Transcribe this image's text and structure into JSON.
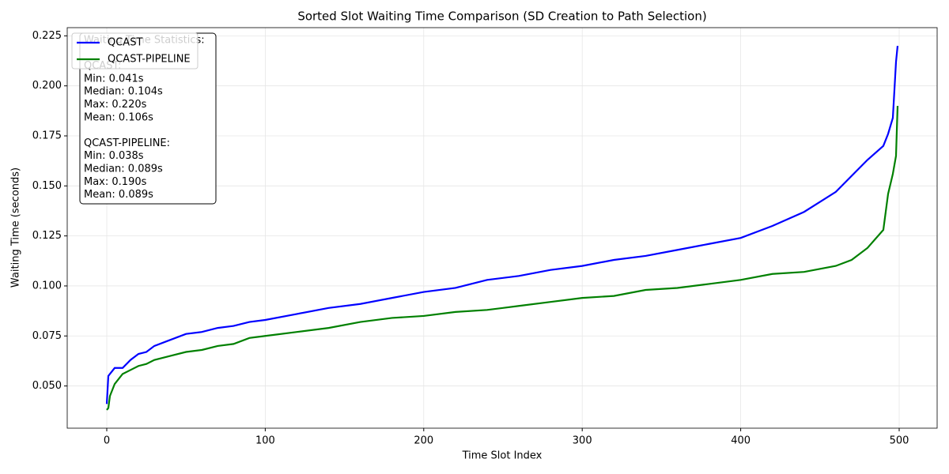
{
  "chart_data": {
    "type": "line",
    "title": "Sorted Slot Waiting Time Comparison (SD Creation to Path Selection)",
    "xlabel": "Time Slot Index",
    "ylabel": "Waiting Time (seconds)",
    "x": [
      0,
      1,
      2,
      5,
      10,
      15,
      20,
      25,
      30,
      40,
      50,
      60,
      70,
      80,
      90,
      100,
      120,
      140,
      160,
      180,
      200,
      220,
      240,
      260,
      280,
      300,
      320,
      340,
      360,
      380,
      400,
      420,
      440,
      460,
      470,
      480,
      490,
      493,
      496,
      498,
      499
    ],
    "series": [
      {
        "name": "QCAST",
        "color": "#0000ff",
        "values": [
          0.041,
          0.055,
          0.056,
          0.059,
          0.059,
          0.063,
          0.066,
          0.067,
          0.07,
          0.073,
          0.076,
          0.077,
          0.079,
          0.08,
          0.082,
          0.083,
          0.086,
          0.089,
          0.091,
          0.094,
          0.097,
          0.099,
          0.103,
          0.105,
          0.108,
          0.11,
          0.113,
          0.115,
          0.118,
          0.121,
          0.124,
          0.13,
          0.137,
          0.147,
          0.155,
          0.163,
          0.17,
          0.176,
          0.184,
          0.212,
          0.22
        ]
      },
      {
        "name": "QCAST-PIPELINE",
        "color": "#008000",
        "values": [
          0.038,
          0.039,
          0.045,
          0.051,
          0.056,
          0.058,
          0.06,
          0.061,
          0.063,
          0.065,
          0.067,
          0.068,
          0.07,
          0.071,
          0.074,
          0.075,
          0.077,
          0.079,
          0.082,
          0.084,
          0.085,
          0.087,
          0.088,
          0.09,
          0.092,
          0.094,
          0.095,
          0.098,
          0.099,
          0.101,
          0.103,
          0.106,
          0.107,
          0.11,
          0.113,
          0.119,
          0.128,
          0.146,
          0.156,
          0.165,
          0.19
        ]
      }
    ],
    "xlim": [
      -24.95,
      523.95
    ],
    "ylim": [
      0.0289,
      0.2291
    ],
    "xticks": [
      0,
      100,
      200,
      300,
      400,
      500
    ],
    "yticks": [
      {
        "value": 0.05,
        "label": "0.050"
      },
      {
        "value": 0.075,
        "label": "0.075"
      },
      {
        "value": 0.1,
        "label": "0.100"
      },
      {
        "value": 0.125,
        "label": "0.125"
      },
      {
        "value": 0.15,
        "label": "0.150"
      },
      {
        "value": 0.175,
        "label": "0.175"
      },
      {
        "value": 0.2,
        "label": "0.200"
      },
      {
        "value": 0.225,
        "label": "0.225"
      }
    ],
    "grid": true,
    "legend": "upper left",
    "annotation": [
      [
        "Waiting Time Statistics:"
      ],
      [
        "QCAST:",
        "Min: 0.041s",
        "Median: 0.104s",
        "Max: 0.220s",
        "Mean: 0.106s"
      ],
      [
        "QCAST-PIPELINE:",
        "Min: 0.038s",
        "Median: 0.089s",
        "Max: 0.190s",
        "Mean: 0.089s"
      ]
    ]
  }
}
